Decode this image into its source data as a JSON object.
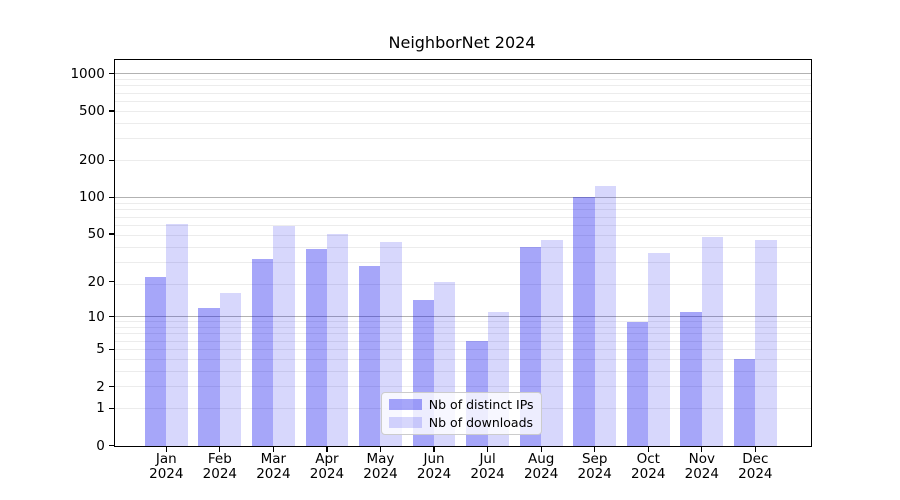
{
  "chart_data": {
    "type": "bar",
    "title": "NeighborNet 2024",
    "categories": [
      "Jan 2024",
      "Feb 2024",
      "Mar 2024",
      "Apr 2024",
      "May 2024",
      "Jun 2024",
      "Jul 2024",
      "Aug 2024",
      "Sep 2024",
      "Oct 2024",
      "Nov 2024",
      "Dec 2024"
    ],
    "month_labels": [
      "Jan",
      "Feb",
      "Mar",
      "Apr",
      "May",
      "Jun",
      "Jul",
      "Aug",
      "Sep",
      "Oct",
      "Nov",
      "Dec"
    ],
    "year_label": "2024",
    "series": [
      {
        "name": "Nb of distinct IPs",
        "color": "rgba(0,0,238,0.35)",
        "values": [
          22,
          12,
          31,
          38,
          27,
          14,
          6,
          39,
          100,
          9,
          11,
          4
        ]
      },
      {
        "name": "Nb of downloads",
        "color": "rgba(0,0,238,0.155)",
        "values": [
          61,
          16,
          58,
          50,
          43,
          20,
          11,
          45,
          124,
          35,
          47,
          45
        ]
      }
    ],
    "yscale": "log(1+x)",
    "ylim": [
      0,
      1300
    ],
    "yticks": [
      0,
      1,
      2,
      5,
      10,
      20,
      50,
      100,
      200,
      500,
      1000
    ],
    "grid": "on",
    "legend_position": "lower center",
    "colors": {
      "axis": "#000000",
      "major_grid": "#b2b2b2",
      "minor_grid": "#ececec",
      "background": "#ffffff"
    },
    "major_grid_values": [
      10,
      100,
      1000
    ],
    "minor_grid_values": [
      1,
      2,
      3,
      4,
      5,
      6,
      7,
      8,
      9,
      19,
      29,
      39,
      49,
      59,
      69,
      79,
      89,
      99,
      199,
      299,
      399,
      499,
      599,
      699,
      799,
      899,
      999
    ]
  }
}
